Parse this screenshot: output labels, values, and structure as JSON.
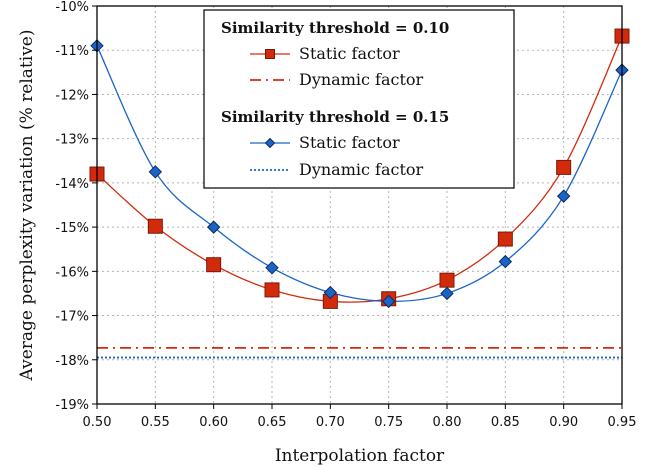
{
  "chart_data": {
    "type": "line",
    "title": "",
    "xlabel": "Interpolation factor",
    "ylabel": "Average perplexity variation (% relative)",
    "x": [
      0.5,
      0.55,
      0.6,
      0.65,
      0.7,
      0.75,
      0.8,
      0.85,
      0.9,
      0.95
    ],
    "xlim": [
      0.5,
      0.95
    ],
    "ylim": [
      -19,
      -10
    ],
    "x_tick_labels": [
      "0.50",
      "0.55",
      "0.60",
      "0.65",
      "0.70",
      "0.75",
      "0.80",
      "0.85",
      "0.90",
      "0.95"
    ],
    "y_tick_values": [
      -10,
      -11,
      -12,
      -13,
      -14,
      -15,
      -16,
      -17,
      -18,
      -19
    ],
    "y_tick_labels": [
      "-10%",
      "-11%",
      "-12%",
      "-13%",
      "-14%",
      "-15%",
      "-16%",
      "-17%",
      "-18%",
      "-19%"
    ],
    "grid": true,
    "legend_position": "top-center",
    "legend_groups": [
      {
        "title": "Similarity threshold = 0.10",
        "entries": [
          {
            "label": "Static factor",
            "series": 0
          },
          {
            "label": "Dynamic factor",
            "series": 2
          }
        ]
      },
      {
        "title": "Similarity threshold = 0.15",
        "entries": [
          {
            "label": "Static factor",
            "series": 1
          },
          {
            "label": "Dynamic factor",
            "series": 3
          }
        ]
      }
    ],
    "series": [
      {
        "group": "Similarity threshold = 0.10",
        "name": "Static factor",
        "kind": "line-marker",
        "marker": "square",
        "color": "#d42a0c",
        "fill": "#d42a0c",
        "values": [
          -13.8,
          -14.98,
          -15.85,
          -16.42,
          -16.68,
          -16.62,
          -16.2,
          -15.27,
          -13.65,
          -10.68
        ]
      },
      {
        "group": "Similarity threshold = 0.15",
        "name": "Static factor",
        "kind": "line-marker",
        "marker": "diamond",
        "color": "#1a64c8",
        "fill": "#1a64c8",
        "values": [
          -10.9,
          -13.75,
          -15.0,
          -15.92,
          -16.48,
          -16.68,
          -16.5,
          -15.78,
          -14.3,
          -11.45
        ]
      },
      {
        "group": "Similarity threshold = 0.10",
        "name": "Dynamic factor",
        "kind": "hline",
        "dash": "dashdot",
        "color": "#d42a0c",
        "value": -17.73
      },
      {
        "group": "Similarity threshold = 0.15",
        "name": "Dynamic factor",
        "kind": "hline",
        "dash": "dotted",
        "color": "#1a64c8",
        "value": -17.95
      }
    ]
  }
}
